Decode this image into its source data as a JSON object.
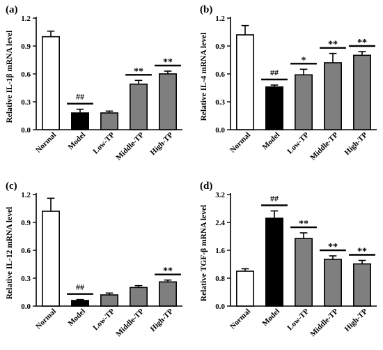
{
  "colors": {
    "normal": "#ffffff",
    "model": "#000000",
    "treatment": "#7f7f7f",
    "axis": "#000000"
  },
  "chart_data": [
    {
      "type": "bar",
      "panel_label": "(a)",
      "ylabel": "Relative IL-1β mRNA level",
      "categories": [
        "Normal",
        "Model",
        "Low-TP",
        "Middle-TP",
        "High-TP"
      ],
      "values": [
        1.0,
        0.18,
        0.18,
        0.49,
        0.6
      ],
      "errors": [
        0.06,
        0.04,
        0.02,
        0.04,
        0.03
      ],
      "ylim": [
        0,
        1.2
      ],
      "yticks": [
        "0.0",
        "0.3",
        "0.6",
        "0.9",
        "1.2"
      ],
      "annotations": [
        "",
        "##",
        "",
        "**",
        "**"
      ],
      "grid": false,
      "legend": "none"
    },
    {
      "type": "bar",
      "panel_label": "(b)",
      "ylabel": "Relative IL-4 mRNA level",
      "categories": [
        "Normal",
        "Model",
        "Low-TP",
        "Middle-TP",
        "High-TP"
      ],
      "values": [
        1.02,
        0.46,
        0.59,
        0.72,
        0.8
      ],
      "errors": [
        0.1,
        0.02,
        0.06,
        0.1,
        0.04
      ],
      "ylim": [
        0,
        1.2
      ],
      "yticks": [
        "0.0",
        "0.3",
        "0.6",
        "0.9",
        "1.2"
      ],
      "annotations": [
        "",
        "##",
        "*",
        "**",
        "**"
      ],
      "grid": false,
      "legend": "none"
    },
    {
      "type": "bar",
      "panel_label": "(c)",
      "ylabel": "Relative IL-12 mRNA level",
      "categories": [
        "Normal",
        "Model",
        "Low-TP",
        "Middle-TP",
        "High-TP"
      ],
      "values": [
        1.02,
        0.06,
        0.12,
        0.2,
        0.26
      ],
      "errors": [
        0.14,
        0.01,
        0.02,
        0.02,
        0.02
      ],
      "ylim": [
        0,
        1.2
      ],
      "yticks": [
        "0.0",
        "0.3",
        "0.6",
        "0.9",
        "1.2"
      ],
      "annotations": [
        "",
        "##",
        "",
        "",
        "**"
      ],
      "grid": false,
      "legend": "none"
    },
    {
      "type": "bar",
      "panel_label": "(d)",
      "ylabel": "Relative TGF-β mRNA level",
      "categories": [
        "Normal",
        "Model",
        "Low-TP",
        "Middle-TP",
        "High-TP"
      ],
      "values": [
        1.0,
        2.52,
        1.94,
        1.34,
        1.21
      ],
      "errors": [
        0.07,
        0.21,
        0.16,
        0.1,
        0.1
      ],
      "ylim": [
        0,
        3.2
      ],
      "yticks": [
        "0.0",
        "0.8",
        "1.6",
        "2.4",
        "3.2"
      ],
      "annotations": [
        "",
        "##",
        "**",
        "**",
        "**"
      ],
      "grid": false,
      "legend": "none"
    }
  ]
}
